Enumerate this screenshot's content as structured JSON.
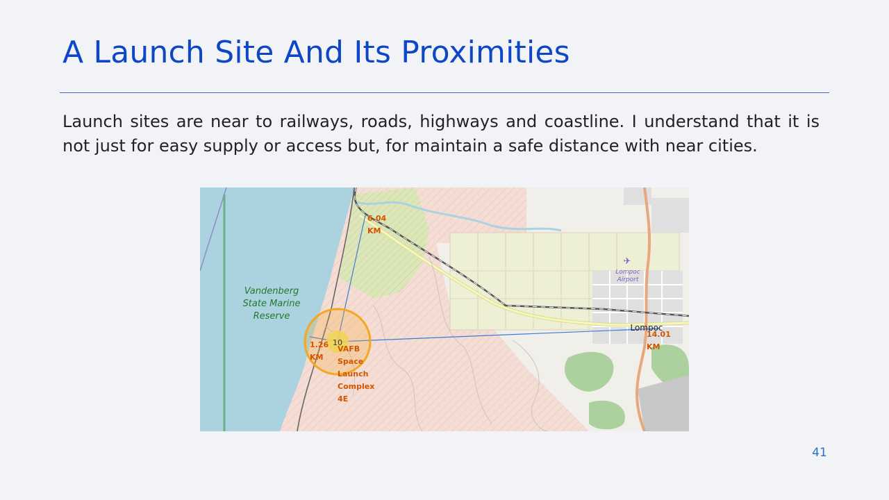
{
  "slide": {
    "title": "A Launch Site And Its Proximities",
    "body": "Launch sites are near to railways, roads, highways and coastline. I understand that it is not just for easy supply or access but, for maintain a safe distance with near cities.",
    "page_number": "41"
  },
  "map": {
    "labels": {
      "reserve_line1": "Vandenberg",
      "reserve_line2": "State Marine",
      "reserve_line3": "Reserve",
      "airport_line1": "Lompoc",
      "airport_line2": "Airport",
      "city": "Lompoc"
    },
    "cluster_count": "10",
    "site_label": [
      "VAFB",
      "Space",
      "Launch",
      "Complex",
      "4E"
    ],
    "distances": [
      {
        "value": "6.04",
        "unit": "KM"
      },
      {
        "value": "1.26",
        "unit": "KM"
      },
      {
        "value": "14.01",
        "unit": "KM"
      }
    ],
    "colors": {
      "water": "#aad3df",
      "military": "#f3dcd5",
      "land": "#f1efe9",
      "farmland": "#eef0d5",
      "forest": "#add19e",
      "distance_text": "#d35400",
      "distance_line": "#3e7bd6",
      "title": "#0d47c7"
    }
  }
}
